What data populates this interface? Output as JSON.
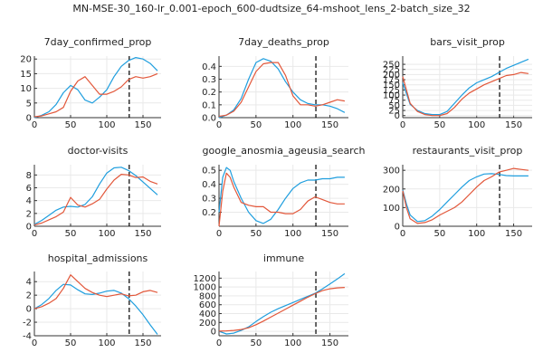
{
  "figure": {
    "title": "MN-MSE-30_160-lr_0.001-epoch_600-dudtsize_64-mshoot_lens_2-batch_size_32"
  },
  "colors": {
    "model": "#1f9ede",
    "observed": "#e2573a",
    "marker": "#000000"
  },
  "chart_data": [
    {
      "type": "line",
      "title": "7day_confirmed_prop",
      "marker_x": 131,
      "xlim": [
        0,
        175
      ],
      "ylim": [
        0,
        21
      ],
      "xticks": [
        0,
        50,
        100,
        150
      ],
      "yticks": [
        0,
        5,
        10,
        15,
        20
      ],
      "series": [
        {
          "role": "model",
          "x": [
            0,
            10,
            20,
            30,
            40,
            50,
            60,
            70,
            80,
            90,
            100,
            110,
            120,
            130,
            140,
            150,
            160,
            170
          ],
          "y": [
            0,
            0.8,
            2,
            4.5,
            8.5,
            11,
            9.5,
            6,
            5,
            7,
            9.5,
            14,
            17.5,
            19.5,
            20.5,
            20,
            18.5,
            16
          ]
        },
        {
          "role": "observed",
          "x": [
            0,
            10,
            20,
            30,
            40,
            50,
            60,
            70,
            80,
            90,
            100,
            110,
            120,
            130,
            140,
            150,
            160,
            170
          ],
          "y": [
            0.3,
            0.6,
            1.3,
            2,
            3.5,
            9,
            12.5,
            14,
            11,
            8,
            8,
            9,
            10.5,
            13,
            14,
            13.5,
            14,
            15
          ]
        }
      ]
    },
    {
      "type": "line",
      "title": "7day_deaths_prop",
      "marker_x": 131,
      "xlim": [
        0,
        175
      ],
      "ylim": [
        0,
        0.48
      ],
      "xticks": [
        0,
        50,
        100,
        150
      ],
      "yticks": [
        0.0,
        0.1,
        0.2,
        0.3,
        0.4
      ],
      "series": [
        {
          "role": "model",
          "x": [
            0,
            10,
            20,
            30,
            40,
            50,
            60,
            70,
            80,
            90,
            100,
            110,
            120,
            130,
            140,
            150,
            160,
            170
          ],
          "y": [
            0,
            0.02,
            0.06,
            0.15,
            0.3,
            0.43,
            0.46,
            0.44,
            0.38,
            0.28,
            0.2,
            0.14,
            0.11,
            0.1,
            0.1,
            0.09,
            0.07,
            0.04
          ]
        },
        {
          "role": "observed",
          "x": [
            0,
            10,
            20,
            30,
            40,
            50,
            60,
            70,
            80,
            90,
            100,
            110,
            120,
            130,
            140,
            150,
            160,
            170
          ],
          "y": [
            0.01,
            0.02,
            0.05,
            0.12,
            0.24,
            0.36,
            0.42,
            0.43,
            0.43,
            0.33,
            0.17,
            0.1,
            0.1,
            0.09,
            0.1,
            0.12,
            0.14,
            0.13
          ]
        }
      ]
    },
    {
      "type": "line",
      "title": "bars_visit_prop",
      "marker_x": 131,
      "xlim": [
        0,
        175
      ],
      "ylim": [
        -10,
        290
      ],
      "xticks": [
        0,
        50,
        100,
        150
      ],
      "yticks": [
        0,
        25,
        50,
        75,
        100,
        125,
        150,
        175,
        200,
        225,
        250
      ],
      "series": [
        {
          "role": "model",
          "x": [
            0,
            10,
            20,
            30,
            40,
            50,
            60,
            70,
            80,
            90,
            100,
            110,
            120,
            130,
            140,
            150,
            160,
            170
          ],
          "y": [
            160,
            55,
            25,
            10,
            5,
            5,
            20,
            60,
            100,
            135,
            160,
            175,
            190,
            210,
            230,
            245,
            260,
            275
          ]
        },
        {
          "role": "observed",
          "x": [
            0,
            10,
            20,
            30,
            40,
            50,
            60,
            70,
            80,
            90,
            100,
            110,
            120,
            130,
            140,
            150,
            160,
            170
          ],
          "y": [
            190,
            60,
            20,
            5,
            0,
            0,
            10,
            40,
            80,
            110,
            130,
            150,
            165,
            180,
            195,
            200,
            210,
            205
          ]
        }
      ]
    },
    {
      "type": "line",
      "title": "doctor-visits",
      "marker_x": 131,
      "xlim": [
        0,
        175
      ],
      "ylim": [
        0,
        9.6
      ],
      "xticks": [
        0,
        50,
        100,
        150
      ],
      "yticks": [
        0,
        2,
        4,
        6,
        8
      ],
      "series": [
        {
          "role": "model",
          "x": [
            0,
            10,
            20,
            30,
            40,
            50,
            60,
            70,
            80,
            90,
            100,
            110,
            120,
            130,
            140,
            150,
            160,
            170
          ],
          "y": [
            0.3,
            0.9,
            1.7,
            2.5,
            3,
            3.1,
            3,
            3.4,
            4.6,
            6.6,
            8.3,
            9.1,
            9.2,
            8.7,
            7.9,
            6.9,
            5.9,
            4.9
          ]
        },
        {
          "role": "observed",
          "x": [
            0,
            10,
            20,
            30,
            40,
            50,
            60,
            70,
            80,
            90,
            100,
            110,
            120,
            130,
            140,
            150,
            160,
            170
          ],
          "y": [
            0.2,
            0.5,
            1,
            1.5,
            2.2,
            4.5,
            3.3,
            3,
            3.5,
            4.2,
            5.8,
            7.2,
            8.1,
            8,
            7.6,
            7.7,
            7,
            6.6
          ]
        }
      ]
    },
    {
      "type": "line",
      "title": "google_anosmia_ageusia_search",
      "marker_x": 131,
      "xlim": [
        0,
        175
      ],
      "ylim": [
        0.1,
        0.54
      ],
      "xticks": [
        0,
        50,
        100,
        150
      ],
      "yticks": [
        0.2,
        0.3,
        0.4,
        0.5
      ],
      "series": [
        {
          "role": "model",
          "x": [
            0,
            5,
            10,
            15,
            20,
            30,
            40,
            50,
            60,
            70,
            80,
            90,
            100,
            110,
            120,
            130,
            140,
            150,
            160,
            170
          ],
          "y": [
            0.2,
            0.45,
            0.52,
            0.5,
            0.42,
            0.3,
            0.2,
            0.14,
            0.12,
            0.15,
            0.22,
            0.3,
            0.37,
            0.41,
            0.43,
            0.43,
            0.44,
            0.44,
            0.45,
            0.45
          ]
        },
        {
          "role": "observed",
          "x": [
            0,
            5,
            10,
            15,
            20,
            30,
            40,
            50,
            60,
            70,
            80,
            90,
            100,
            110,
            120,
            130,
            140,
            150,
            160,
            170
          ],
          "y": [
            0.1,
            0.35,
            0.48,
            0.45,
            0.38,
            0.27,
            0.25,
            0.24,
            0.24,
            0.2,
            0.2,
            0.19,
            0.19,
            0.22,
            0.28,
            0.31,
            0.29,
            0.27,
            0.26,
            0.26
          ]
        }
      ]
    },
    {
      "type": "line",
      "title": "restaurants_visit_prop",
      "marker_x": 131,
      "xlim": [
        0,
        175
      ],
      "ylim": [
        0,
        330
      ],
      "xticks": [
        0,
        50,
        100,
        150
      ],
      "yticks": [
        0,
        100,
        200,
        300
      ],
      "series": [
        {
          "role": "model",
          "x": [
            0,
            5,
            10,
            20,
            30,
            40,
            50,
            60,
            70,
            80,
            90,
            100,
            110,
            120,
            130,
            140,
            150,
            160,
            170
          ],
          "y": [
            195,
            120,
            60,
            25,
            30,
            55,
            90,
            130,
            170,
            210,
            245,
            265,
            280,
            282,
            278,
            272,
            270,
            270,
            270
          ]
        },
        {
          "role": "observed",
          "x": [
            0,
            5,
            10,
            20,
            30,
            40,
            50,
            60,
            70,
            80,
            90,
            100,
            110,
            120,
            130,
            140,
            150,
            160,
            170
          ],
          "y": [
            190,
            100,
            40,
            15,
            20,
            35,
            60,
            80,
            100,
            130,
            170,
            210,
            245,
            265,
            290,
            300,
            310,
            305,
            300
          ]
        }
      ]
    },
    {
      "type": "line",
      "title": "hospital_admissions",
      "marker_x": 131,
      "xlim": [
        0,
        175
      ],
      "ylim": [
        -4,
        5.5
      ],
      "xticks": [
        0,
        50,
        100,
        150
      ],
      "yticks": [
        -4,
        -2,
        0,
        2,
        4
      ],
      "series": [
        {
          "role": "model",
          "x": [
            0,
            10,
            20,
            30,
            40,
            50,
            60,
            70,
            80,
            90,
            100,
            110,
            120,
            130,
            140,
            150,
            160,
            170
          ],
          "y": [
            0,
            0.6,
            1.5,
            2.7,
            3.6,
            3.5,
            2.8,
            2.2,
            2.1,
            2.3,
            2.6,
            2.7,
            2.3,
            1.5,
            0.4,
            -0.9,
            -2.4,
            -3.8
          ]
        },
        {
          "role": "observed",
          "x": [
            0,
            10,
            20,
            30,
            40,
            50,
            60,
            70,
            80,
            90,
            100,
            110,
            120,
            130,
            140,
            150,
            160,
            170
          ],
          "y": [
            0,
            0.3,
            0.8,
            1.5,
            3,
            5,
            4,
            3,
            2.4,
            2,
            1.8,
            2,
            2.2,
            1.9,
            2,
            2.5,
            2.7,
            2.4
          ]
        }
      ]
    },
    {
      "type": "line",
      "title": "immune",
      "marker_x": 131,
      "xlim": [
        0,
        175
      ],
      "ylim": [
        -100,
        1350
      ],
      "xticks": [
        0,
        50,
        100,
        150
      ],
      "yticks": [
        0,
        200,
        400,
        600,
        800,
        1000,
        1200
      ],
      "series": [
        {
          "role": "model",
          "x": [
            0,
            10,
            20,
            30,
            40,
            50,
            60,
            70,
            80,
            90,
            100,
            110,
            120,
            130,
            140,
            150,
            160,
            170
          ],
          "y": [
            0,
            -60,
            -40,
            20,
            100,
            220,
            330,
            430,
            510,
            580,
            650,
            720,
            790,
            860,
            960,
            1070,
            1180,
            1300
          ]
        },
        {
          "role": "observed",
          "x": [
            0,
            10,
            20,
            30,
            40,
            50,
            60,
            70,
            80,
            90,
            100,
            110,
            120,
            130,
            140,
            150,
            160,
            170
          ],
          "y": [
            5,
            10,
            20,
            40,
            80,
            150,
            230,
            320,
            410,
            500,
            590,
            680,
            770,
            850,
            920,
            960,
            980,
            990
          ]
        }
      ]
    }
  ]
}
